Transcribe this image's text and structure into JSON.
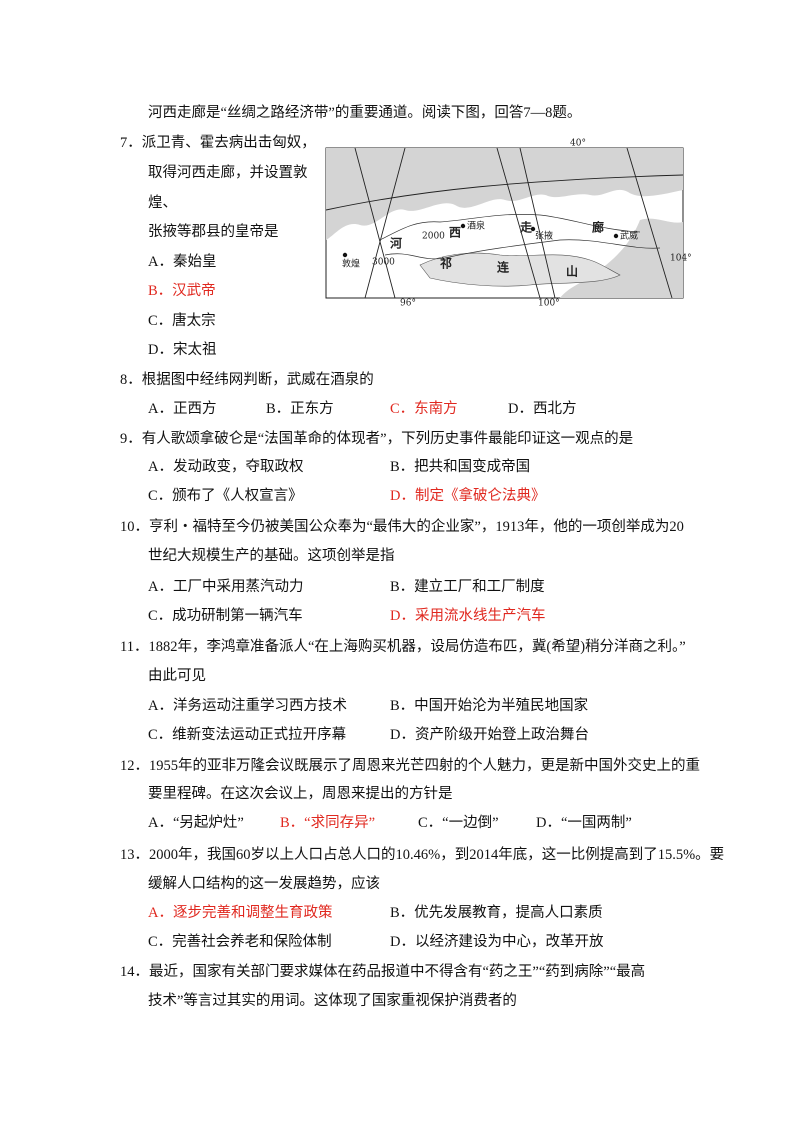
{
  "intro": "河西走廊是“丝绸之路经济带”的重要通道。阅读下图，回答7—8题。",
  "map": {
    "labels": {
      "lat40": "40°",
      "lon96": "96°",
      "lon100": "100°",
      "lon104": "104°",
      "dunhuang": "敦煌",
      "jiuquan": "酒泉",
      "zhangye": "张掖",
      "wuwei": "武威",
      "he": "河",
      "xi": "西",
      "zou": "走",
      "lang": "廊",
      "qi": "祁",
      "lian": "连",
      "shan": "山",
      "c2000": "2000",
      "c3000": "3000"
    }
  },
  "answer_color": "#e0281f",
  "questions": [
    {
      "stem": [
        "7．派卫青、霍去病出击匈奴，",
        "取得河西走廊，并设置敦",
        "煌、",
        "张掖等郡县的皇帝是"
      ],
      "options": [
        "A．秦始皇",
        "B．汉武帝",
        "C．唐太宗",
        "D．宋太祖"
      ],
      "answer": 1
    },
    {
      "stem": [
        "8．根据图中经纬网判断，武威在酒泉的"
      ],
      "options": [
        "A．正西方",
        "B．正东方",
        "C．东南方",
        "D．西北方"
      ],
      "answer": 2
    },
    {
      "stem": [
        "9．有人歌颂拿破仑是“法国革命的体现者”，下列历史事件最能印证这一观点的是"
      ],
      "options": [
        "A．发动政变，夺取政权",
        "B．把共和国变成帝国",
        "C．颁布了《人权宣言》",
        "D．制定《拿破仑法典》"
      ],
      "answer": 3
    },
    {
      "stem": [
        "10．亨利・福特至今仍被美国公众奉为“最伟大的企业家”，1913年，他的一项创举成为20",
        "世纪大规模生产的基础。这项创举是指"
      ],
      "options": [
        "A．工厂中采用蒸汽动力",
        "B．建立工厂和工厂制度",
        "C．成功研制第一辆汽车",
        "D．采用流水线生产汽车"
      ],
      "answer": 3
    },
    {
      "stem": [
        "11．1882年，李鸿章准备派人“在上海购买机器，设局仿造布匹，冀(希望)稍分洋商之利。”",
        "由此可见"
      ],
      "options": [
        "A．洋务运动注重学习西方技术",
        "B．中国开始沦为半殖民地国家",
        "C．维新变法运动正式拉开序幕",
        "D．资产阶级开始登上政治舞台"
      ]
    },
    {
      "stem": [
        "12．1955年的亚非万隆会议既展示了周恩来光芒四射的个人魅力，更是新中国外交史上的重",
        "要里程碑。在这次会议上，周恩来提出的方针是"
      ],
      "options": [
        "A．“另起炉灶”",
        "B．“求同存异”",
        "C．“一边倒”",
        "D．“一国两制”"
      ],
      "answer": 1
    },
    {
      "stem": [
        "13．2000年，我国60岁以上人口占总人口的10.46%，到2014年底，这一比例提高到了15.5%。要",
        "缓解人口结构的这一发展趋势，应该"
      ],
      "options": [
        "A．逐步完善和调整生育政策",
        "B．优先发展教育，提高人口素质",
        "C．完善社会养老和保险体制",
        "D．以经济建设为中心，改革开放"
      ],
      "answer": 0
    },
    {
      "stem": [
        "14．最近，国家有关部门要求媒体在药品报道中不得含有“药之王”“药到病除”“最高",
        "技术”等言过其实的用词。这体现了国家重视保护消费者的"
      ],
      "options": []
    }
  ]
}
